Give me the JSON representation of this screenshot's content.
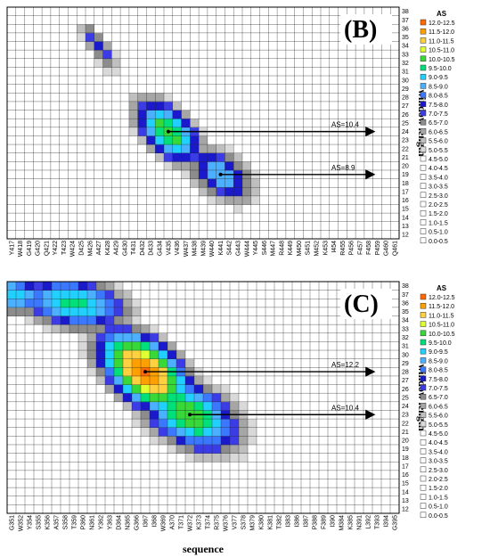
{
  "colors": {
    "bins": [
      "#ffffff",
      "#ffffff",
      "#ffffff",
      "#ffffff",
      "#ffffff",
      "#ffffff",
      "#ffffff",
      "#ffffff",
      "#ffffff",
      "#ffffff",
      "#d9d9d9",
      "#bfbfbf",
      "#a6a6a6",
      "#8c8c8c",
      "#3c3ce6",
      "#1a1acc",
      "#3a78ff",
      "#4ab0ff",
      "#22d0ff",
      "#00e07a",
      "#38d838",
      "#e0ff30",
      "#ffd040",
      "#ffa000",
      "#ff6a00",
      "#e00000"
    ]
  },
  "chart_data": [
    {
      "type": "heatmap",
      "panel_label": "(B)",
      "xlabel": "",
      "ylabel": "window length",
      "y_ticks": [
        12,
        13,
        14,
        15,
        16,
        17,
        18,
        19,
        20,
        21,
        22,
        23,
        24,
        25,
        26,
        27,
        28,
        29,
        30,
        31,
        32,
        33,
        34,
        35,
        36,
        37,
        38
      ],
      "x_ticks": [
        "Y417",
        "W418",
        "G419",
        "G420",
        "Q421",
        "Y422",
        "T423",
        "W424",
        "D425",
        "M426",
        "A427",
        "K428",
        "A429",
        "G430",
        "T431",
        "D432",
        "D433",
        "G434",
        "V435",
        "V436",
        "W437",
        "M438",
        "M439",
        "W440",
        "K441",
        "S442",
        "G443",
        "W444",
        "Y445",
        "S446",
        "M447",
        "R448",
        "K449",
        "M450",
        "S451",
        "M452",
        "K453",
        "I454",
        "R455",
        "P456",
        "F457",
        "F458",
        "P459",
        "G460",
        "Q461"
      ],
      "annotations": [
        {
          "label": "AS=10.4",
          "x": "V435",
          "y": 24
        },
        {
          "label": "AS=8.9",
          "x": "K441",
          "y": 19
        }
      ],
      "legend": {
        "title": "AS",
        "entries": [
          "12.0-12.5",
          "11.5-12.0",
          "11.0-11.5",
          "10.5-11.0",
          "10.0-10.5",
          "9.5-10.0",
          "9.0-9.5",
          "8.5-9.0",
          "8.0-8.5",
          "7.5-8.0",
          "7.0-7.5",
          "6.5-7.0",
          "6.0-6.5",
          "5.5-6.0",
          "5.0-5.5",
          "4.5-5.0",
          "4.0-4.5",
          "3.5-4.0",
          "3.0-3.5",
          "2.5-3.0",
          "2.0-2.5",
          "1.5-2.0",
          "1.0-1.5",
          "0.5-1.0",
          "0.0-0.5"
        ],
        "placement": "right"
      },
      "peaks": [
        {
          "x": "V435",
          "y": 24,
          "value": 10.4,
          "spread_x": 1.6,
          "spread_y": 2.6
        },
        {
          "x": "K441",
          "y": 19,
          "value": 8.9,
          "spread_x": 1.8,
          "spread_y": 2.4
        },
        {
          "x": "A427",
          "y": 34,
          "value": 7.6,
          "spread_x": 0.8,
          "spread_y": 2.4
        }
      ]
    },
    {
      "type": "heatmap",
      "panel_label": "(C)",
      "xlabel": "sequence",
      "ylabel": "window length",
      "y_ticks": [
        12,
        13,
        14,
        15,
        16,
        17,
        18,
        19,
        20,
        21,
        22,
        23,
        24,
        25,
        26,
        27,
        28,
        29,
        30,
        31,
        32,
        33,
        34,
        35,
        36,
        37,
        38
      ],
      "x_ticks": [
        "G351",
        "W352",
        "Y354",
        "S355",
        "K356",
        "A357",
        "S358",
        "T359",
        "P360",
        "N361",
        "Y362",
        "Y363",
        "D364",
        "N365",
        "G366",
        "I367",
        "I368",
        "W369",
        "A370",
        "T371",
        "W372",
        "K373",
        "T374",
        "R375",
        "W376",
        "V377",
        "S378",
        "M379",
        "K380",
        "K381",
        "T382",
        "I383",
        "I386",
        "I387",
        "P388",
        "F389",
        "I390",
        "M384",
        "K385",
        "N391",
        "L392",
        "T393",
        "I394",
        "G395"
      ],
      "annotations": [
        {
          "label": "AS=12.2",
          "x": "I367",
          "y": 28
        },
        {
          "label": "AS=10.4",
          "x": "W372",
          "y": 23
        }
      ],
      "legend": {
        "title": "AS",
        "entries": [
          "12.0-12.5",
          "11.5-12.0",
          "11.0-11.5",
          "10.5-11.0",
          "10.0-10.5",
          "9.5-10.0",
          "9.0-9.5",
          "8.5-9.0",
          "8.0-8.5",
          "7.5-8.0",
          "7.0-7.5",
          "6.5-7.0",
          "6.0-6.5",
          "5.5-6.0",
          "5.0-5.5",
          "4.5-5.0",
          "4.0-4.5",
          "3.5-4.0",
          "3.0-3.5",
          "2.5-3.0",
          "2.0-2.5",
          "1.5-2.0",
          "1.0-1.5",
          "0.5-1.0",
          "0.0-0.5"
        ],
        "placement": "right"
      },
      "peaks": [
        {
          "x": "I367",
          "y": 28,
          "value": 12.2,
          "spread_x": 2.2,
          "spread_y": 3.2
        },
        {
          "x": "W372",
          "y": 23,
          "value": 10.4,
          "spread_x": 2.6,
          "spread_y": 3.0
        },
        {
          "x": "T359",
          "y": 36,
          "value": 9.8,
          "spread_x": 3.0,
          "spread_y": 2.2
        },
        {
          "x": "G351",
          "y": 37,
          "value": 9.3,
          "spread_x": 2.4,
          "spread_y": 1.6
        }
      ]
    }
  ]
}
